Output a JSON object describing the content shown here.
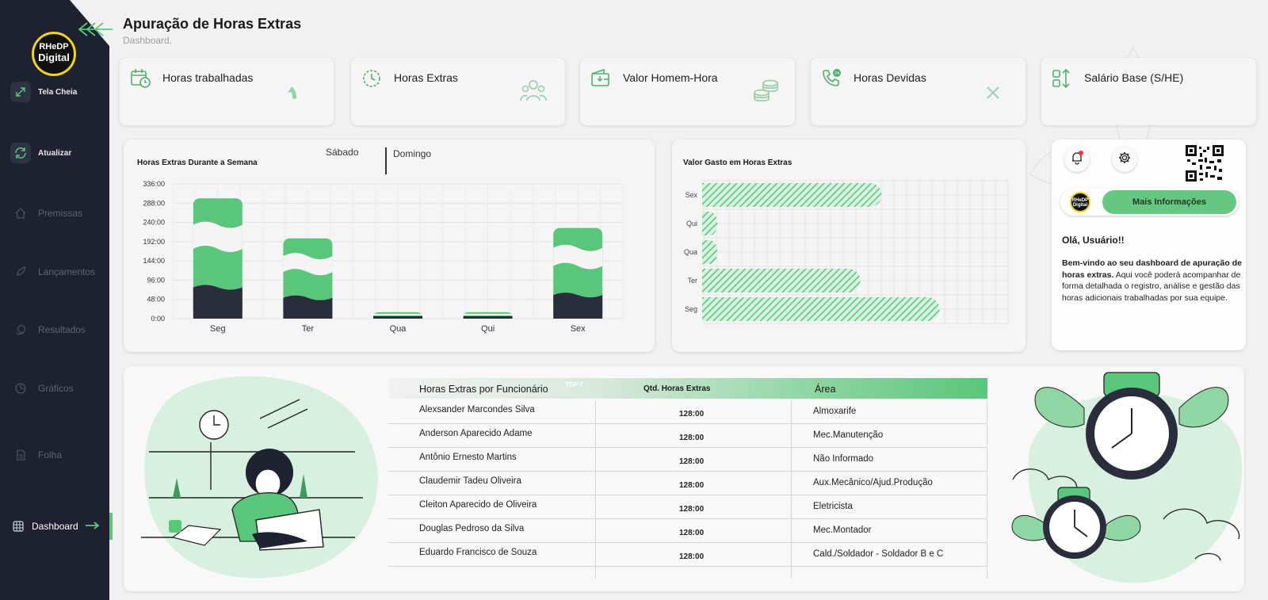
{
  "header": {
    "title": "Apuração de Horas Extras",
    "subtitle": "Dashboard."
  },
  "brand": {
    "logo_line1": "RHeDP",
    "logo_line2": "Digital"
  },
  "sidebar": {
    "items": [
      {
        "label": "Tela Cheia",
        "icon": "expand-icon"
      },
      {
        "label": "Atualizar",
        "icon": "refresh-icon"
      },
      {
        "label": "Premissas",
        "icon": "home-icon"
      },
      {
        "label": "Lançamentos",
        "icon": "rocket-icon"
      },
      {
        "label": "Resultados",
        "icon": "money-icon"
      },
      {
        "label": "Gráficos",
        "icon": "pie-icon"
      },
      {
        "label": "Folha",
        "icon": "document-icon"
      },
      {
        "label": "Dashboard",
        "icon": "globe-icon",
        "active": true
      }
    ]
  },
  "kpis": [
    {
      "label": "Horas trabalhadas",
      "icon": "calendar-clock-icon"
    },
    {
      "label": "Horas Extras",
      "icon": "clock-icon"
    },
    {
      "label": "Valor Homem-Hora",
      "icon": "wallet-icon"
    },
    {
      "label": "Horas Devidas",
      "icon": "phone-24h-icon"
    },
    {
      "label": "Salário Base (S/HE)",
      "icon": "sort-icon"
    }
  ],
  "colors": {
    "sidebar": "#1e2230",
    "accent": "#5ac67b",
    "dark_bar": "#2a2d3c",
    "background": "#f1f1f1"
  },
  "chart_data": [
    {
      "type": "bar",
      "title": "Horas Extras Durante a Semana",
      "tabs": [
        "Sábado",
        "Domingo"
      ],
      "categories": [
        "Seg",
        "Ter",
        "Qua",
        "Qui",
        "Sex"
      ],
      "y_ticks": [
        "336:00",
        "288:00",
        "240:00",
        "192:00",
        "144:00",
        "96:00",
        "48:00",
        "0:00"
      ],
      "ylim": [
        0,
        336
      ],
      "series": [
        {
          "values": [
            300,
            200,
            16,
            16,
            226
          ]
        }
      ]
    },
    {
      "type": "bar",
      "orientation": "horizontal",
      "title": "Valor Gasto em Horas Extras",
      "categories": [
        "Sex",
        "Qui",
        "Qua",
        "Ter",
        "Seg"
      ],
      "values": [
        0.59,
        0.05,
        0.05,
        0.52,
        0.78
      ]
    }
  ],
  "info": {
    "more_button": "Mais Informações",
    "greeting": "Olá, Usuário!!",
    "welcome_bold": "Bem-vindo ao seu dashboard de apuração de horas extras.",
    "welcome_rest": " Aqui você poderá acompanhar de forma detalhada o registro, análise e gestão das horas adicionais trabalhadas por sua equipe."
  },
  "table": {
    "title": "Horas Extras por Funcionário",
    "badge": "TOP 7",
    "col_qtd": "Qtd. Horas Extras",
    "col_area": "Área",
    "rows": [
      {
        "name": "Alexsander Marcondes Silva",
        "qtd": "128:00",
        "area": "Almoxarife"
      },
      {
        "name": "Anderson Aparecido Adame",
        "qtd": "128:00",
        "area": "Mec.Manutenção"
      },
      {
        "name": "Antônio Ernesto Martins",
        "qtd": "128:00",
        "area": "Não Informado"
      },
      {
        "name": "Claudemir Tadeu Oliveira",
        "qtd": "128:00",
        "area": "Aux.Mecânico/Ajud.Produção"
      },
      {
        "name": "Cleiton Aparecido de Oliveira",
        "qtd": "128:00",
        "area": "Eletricista"
      },
      {
        "name": "Douglas Pedroso da Silva",
        "qtd": "128:00",
        "area": "Mec.Montador"
      },
      {
        "name": "Eduardo Francisco de Souza",
        "qtd": "128:00",
        "area": "Cald./Soldador - Soldador B e C"
      }
    ]
  }
}
